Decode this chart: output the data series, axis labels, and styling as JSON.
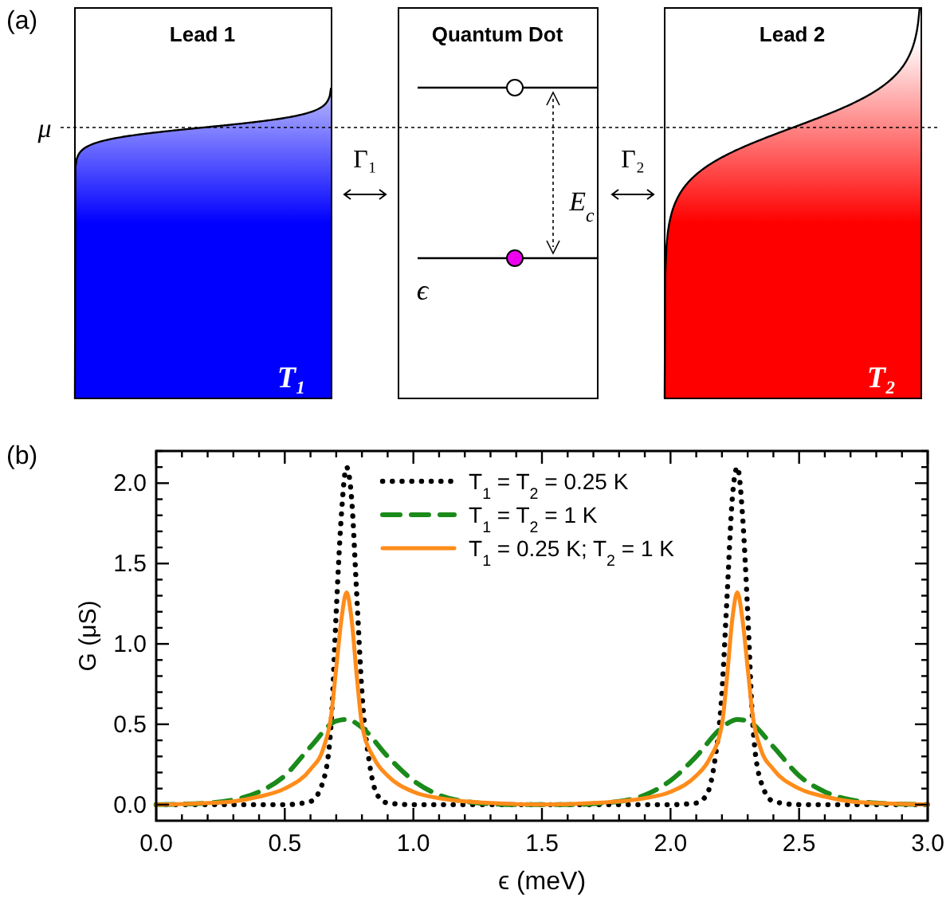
{
  "chart_data": [
    {
      "type": "other",
      "annotations": [
        "(a)",
        "Lead 1",
        "Quantum Dot",
        "Lead 2",
        "μ",
        "Γ₁",
        "Γ₂",
        "E$_{c}$",
        "ϵ",
        "T₁",
        "T₂"
      ]
    },
    {
      "type": "line",
      "xlabel": "ϵ (meV)",
      "ylabel": "G (μS)",
      "annotations": [
        "(b)"
      ],
      "xlim": [
        0,
        3
      ],
      "ylim": [
        -0.1,
        2.2
      ],
      "xticks": [
        {
          "value": 0,
          "label": "0.0"
        },
        {
          "value": 0.1,
          "label": null
        },
        {
          "value": 0.2,
          "label": null
        },
        {
          "value": 0.3,
          "label": null
        },
        {
          "value": 0.4,
          "label": null
        },
        {
          "value": 0.5,
          "label": "0.5"
        },
        {
          "value": 0.6,
          "label": null
        },
        {
          "value": 0.7,
          "label": null
        },
        {
          "value": 0.8,
          "label": null
        },
        {
          "value": 0.9,
          "label": null
        },
        {
          "value": 1,
          "label": "1.0"
        },
        {
          "value": 1.1,
          "label": null
        },
        {
          "value": 1.2,
          "label": null
        },
        {
          "value": 1.3,
          "label": null
        },
        {
          "value": 1.4,
          "label": null
        },
        {
          "value": 1.5,
          "label": "1.5"
        },
        {
          "value": 1.6,
          "label": null
        },
        {
          "value": 1.7,
          "label": null
        },
        {
          "value": 1.8,
          "label": null
        },
        {
          "value": 1.9,
          "label": null
        },
        {
          "value": 2,
          "label": "2.0"
        },
        {
          "value": 2.1,
          "label": null
        },
        {
          "value": 2.2,
          "label": null
        },
        {
          "value": 2.3,
          "label": null
        },
        {
          "value": 2.4,
          "label": null
        },
        {
          "value": 2.5,
          "label": "2.5"
        },
        {
          "value": 2.6,
          "label": null
        },
        {
          "value": 2.7,
          "label": null
        },
        {
          "value": 2.8,
          "label": null
        },
        {
          "value": 2.9,
          "label": null
        },
        {
          "value": 3,
          "label": "3.0"
        }
      ],
      "yticks": [
        {
          "value": 0,
          "label": "0.0"
        },
        {
          "value": 0.1,
          "label": null
        },
        {
          "value": 0.2,
          "label": null
        },
        {
          "value": 0.3,
          "label": null
        },
        {
          "value": 0.4,
          "label": null
        },
        {
          "value": 0.5,
          "label": "0.5"
        },
        {
          "value": 0.6,
          "label": null
        },
        {
          "value": 0.7,
          "label": null
        },
        {
          "value": 0.8,
          "label": null
        },
        {
          "value": 0.9,
          "label": null
        },
        {
          "value": 1,
          "label": "1.0"
        },
        {
          "value": 1.1,
          "label": null
        },
        {
          "value": 1.2,
          "label": null
        },
        {
          "value": 1.3,
          "label": null
        },
        {
          "value": 1.4,
          "label": null
        },
        {
          "value": 1.5,
          "label": "1.5"
        },
        {
          "value": 1.6,
          "label": null
        },
        {
          "value": 1.7,
          "label": null
        },
        {
          "value": 1.8,
          "label": null
        },
        {
          "value": 1.9,
          "label": null
        },
        {
          "value": 2,
          "label": "2.0"
        },
        {
          "value": 2.1,
          "label": null
        },
        {
          "value": 2.2,
          "label": null
        }
      ],
      "legend": "top",
      "grid": false,
      "series": [
        {
          "name": "T$_{1}$ = T$_{2}$ = 0.25 K",
          "color": "#000000",
          "line_style": "dotted",
          "x": [
            0,
            0.5,
            0.6,
            0.65,
            0.68,
            0.7,
            0.72,
            0.74,
            0.76,
            0.78,
            0.8,
            0.83,
            0.86,
            0.9,
            1.0,
            2.0,
            2.1,
            2.14,
            2.17,
            2.2,
            2.22,
            2.24,
            2.26,
            2.28,
            2.3,
            2.32,
            2.35,
            2.4,
            2.5,
            3.0
          ],
          "values": [
            0,
            0,
            0.02,
            0.15,
            0.5,
            1.2,
            1.8,
            2.1,
            1.9,
            1.3,
            0.7,
            0.25,
            0.06,
            0.01,
            0,
            0,
            0.01,
            0.06,
            0.25,
            0.7,
            1.3,
            1.9,
            2.1,
            1.8,
            1.2,
            0.5,
            0.15,
            0.02,
            0,
            0
          ]
        },
        {
          "name": "T$_{1}$ = T$_{2}$ = 1 K",
          "color": "#1a8a1a",
          "line_style": "dashed",
          "x": [
            0,
            0.2,
            0.3,
            0.4,
            0.5,
            0.6,
            0.7,
            0.74,
            0.8,
            0.9,
            1.0,
            1.1,
            1.2,
            1.4,
            1.6,
            1.8,
            1.9,
            2.0,
            2.1,
            2.2,
            2.26,
            2.3,
            2.4,
            2.5,
            2.6,
            2.7,
            2.8,
            3.0
          ],
          "values": [
            0,
            0.01,
            0.03,
            0.08,
            0.18,
            0.36,
            0.52,
            0.53,
            0.48,
            0.3,
            0.15,
            0.06,
            0.02,
            0,
            0,
            0.02,
            0.06,
            0.15,
            0.3,
            0.48,
            0.53,
            0.52,
            0.36,
            0.18,
            0.08,
            0.03,
            0.01,
            0
          ]
        },
        {
          "name": "T$_{1}$ = 0.25 K; T$_{2}$ = 1 K",
          "color": "#ff8c1a",
          "line_style": "solid",
          "x": [
            0,
            0.2,
            0.3,
            0.4,
            0.5,
            0.6,
            0.65,
            0.68,
            0.7,
            0.72,
            0.74,
            0.76,
            0.78,
            0.8,
            0.85,
            0.9,
            1.0,
            1.1,
            1.3,
            1.5,
            1.7,
            1.9,
            2.0,
            2.1,
            2.15,
            2.2,
            2.22,
            2.24,
            2.26,
            2.28,
            2.3,
            2.32,
            2.35,
            2.4,
            2.5,
            2.6,
            2.7,
            2.8,
            3.0
          ],
          "values": [
            0,
            0.01,
            0.02,
            0.05,
            0.1,
            0.22,
            0.35,
            0.55,
            0.85,
            1.15,
            1.32,
            1.15,
            0.8,
            0.5,
            0.28,
            0.18,
            0.08,
            0.04,
            0.01,
            0,
            0.01,
            0.04,
            0.08,
            0.18,
            0.28,
            0.5,
            0.8,
            1.15,
            1.32,
            1.15,
            0.85,
            0.55,
            0.35,
            0.22,
            0.1,
            0.05,
            0.02,
            0.01,
            0
          ]
        }
      ]
    }
  ]
}
